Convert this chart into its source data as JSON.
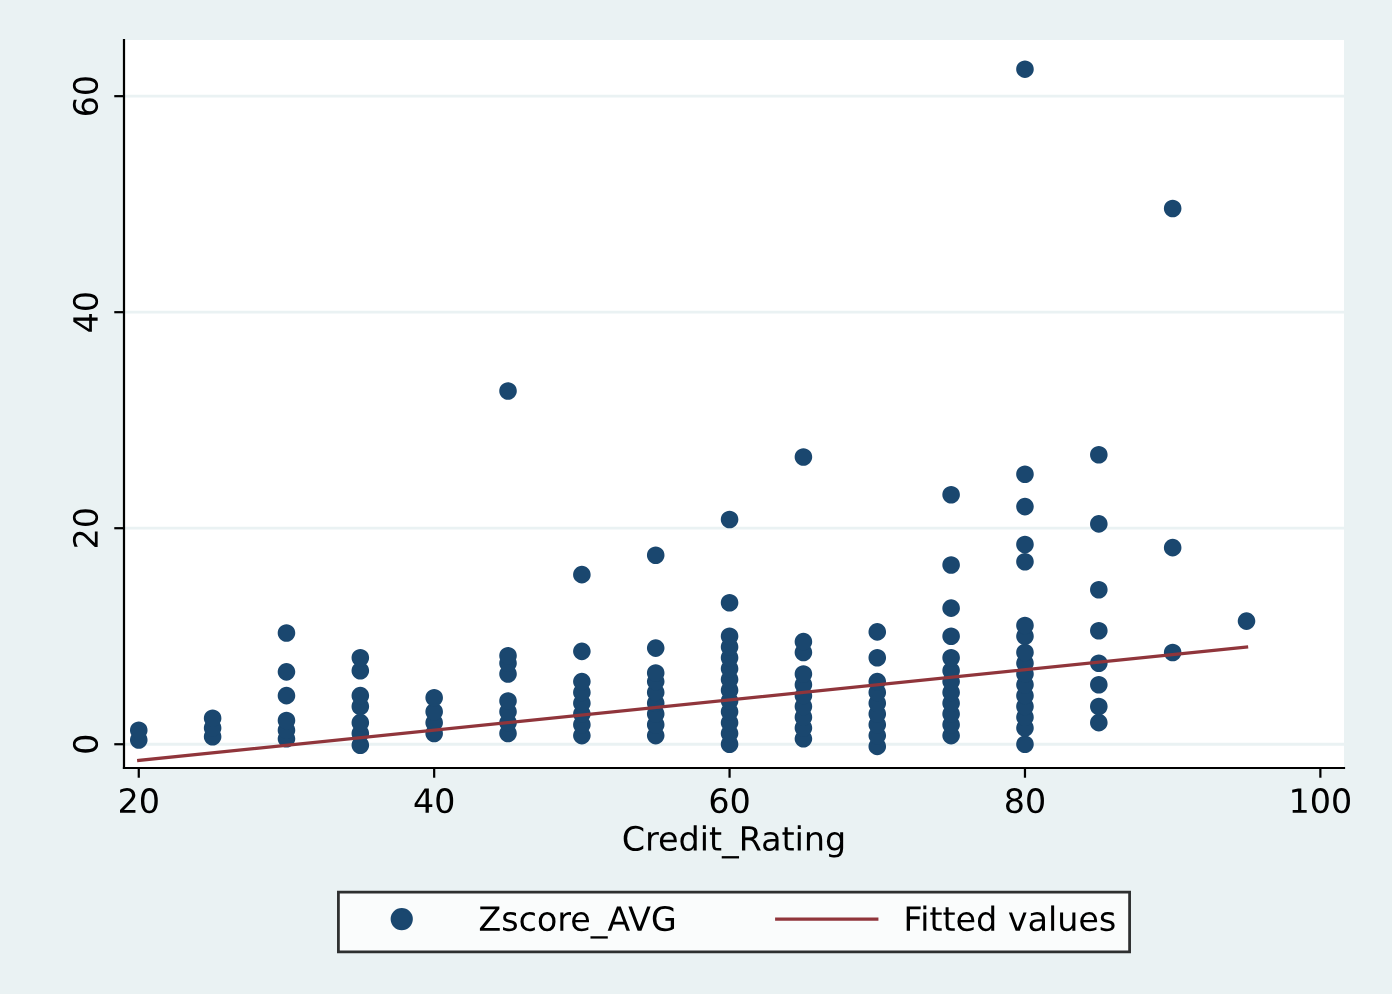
{
  "chart_data": {
    "type": "scatter",
    "xlabel": "Credit_Rating",
    "xlim": [
      19,
      101.6
    ],
    "ylim": [
      -2.2,
      65.2
    ],
    "xticks": [
      20,
      40,
      60,
      80,
      100
    ],
    "yticks": [
      0,
      20,
      40,
      60
    ],
    "grid": "y",
    "legend": "bottom",
    "series": [
      {
        "name": "Zscore_AVG",
        "color": "#1a476f",
        "marker": "circle",
        "x": [
          20,
          20,
          25,
          25,
          25,
          30,
          30,
          30,
          30,
          30,
          30,
          35,
          35,
          35,
          35,
          35,
          35,
          35,
          40,
          40,
          40,
          40,
          45,
          45,
          45,
          45,
          45,
          45,
          45,
          45,
          50,
          50,
          50,
          50,
          50,
          50,
          50,
          50,
          55,
          55,
          55,
          55,
          55,
          55,
          55,
          55,
          55,
          60,
          60,
          60,
          60,
          60,
          60,
          60,
          60,
          60,
          60,
          60,
          60,
          60,
          65,
          65,
          65,
          65,
          65,
          65,
          65,
          65,
          65,
          65,
          70,
          70,
          70,
          70,
          70,
          70,
          70,
          70,
          70,
          75,
          75,
          75,
          75,
          75,
          75,
          75,
          75,
          75,
          75,
          75,
          75,
          80,
          80,
          80,
          80,
          80,
          80,
          80,
          80,
          80,
          80,
          80,
          80,
          80,
          80,
          80,
          80,
          85,
          85,
          85,
          85,
          85,
          85,
          85,
          85,
          90,
          90,
          90,
          95
        ],
        "values": [
          0.4,
          1.3,
          0.7,
          1.5,
          2.4,
          0.5,
          1.3,
          2.2,
          4.5,
          6.7,
          10.3,
          -0.1,
          1,
          2,
          3.5,
          4.5,
          6.8,
          8,
          1,
          2,
          3,
          4.3,
          1,
          2,
          3,
          4,
          6.5,
          7.5,
          8.2,
          32.7,
          0.8,
          1.8,
          2.8,
          3.8,
          4.8,
          5.8,
          8.6,
          15.7,
          0.8,
          1.8,
          2.8,
          3.8,
          4.8,
          5.8,
          6.6,
          8.9,
          17.5,
          0,
          1,
          2,
          3,
          4,
          5,
          6,
          7,
          8,
          9,
          10,
          13.1,
          20.8,
          0.5,
          1.5,
          2.5,
          3.5,
          4.5,
          5.5,
          6.5,
          8.5,
          9.5,
          26.6,
          -0.2,
          0.8,
          1.8,
          2.8,
          3.8,
          4.8,
          5.8,
          8,
          10.4,
          0.8,
          1.8,
          2.8,
          3.8,
          4.8,
          5.8,
          6.8,
          8,
          10,
          12.6,
          16.6,
          23.1,
          0,
          1.5,
          2.5,
          3.5,
          4.5,
          5.5,
          6.5,
          7.5,
          8.5,
          10,
          11,
          16.9,
          18.5,
          22,
          25,
          62.5,
          2,
          3.5,
          5.5,
          7.5,
          10.5,
          14.3,
          20.4,
          26.8,
          8.5,
          18.2,
          49.6,
          11.4
        ]
      },
      {
        "name": "Fitted values",
        "color": "#90353b",
        "type": "line",
        "x": [
          20,
          95
        ],
        "values": [
          -1.5,
          9.0
        ]
      }
    ]
  }
}
